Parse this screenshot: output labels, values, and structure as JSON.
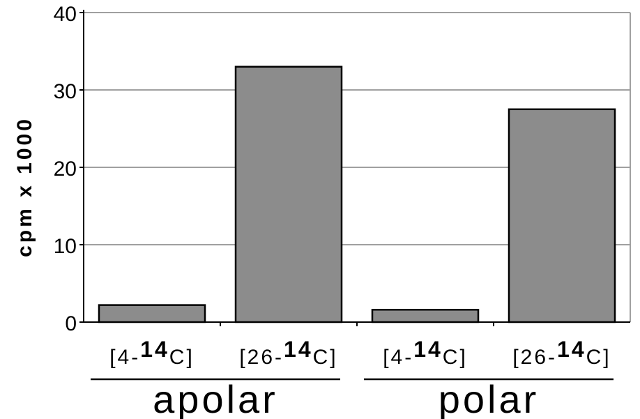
{
  "chart_data": {
    "type": "bar",
    "title": "",
    "xlabel": "",
    "ylabel": "cpm x 1000",
    "ylim": [
      0,
      40
    ],
    "yticks": [
      0,
      10,
      20,
      30,
      40
    ],
    "grid": true,
    "categories": [
      {
        "group": "apolar",
        "label_prefix": "[4-",
        "label_sup": "14",
        "label_suffix": "C]",
        "value": 2.2
      },
      {
        "group": "apolar",
        "label_prefix": "[26-",
        "label_sup": "14",
        "label_suffix": "C]",
        "value": 33
      },
      {
        "group": "polar",
        "label_prefix": "[4-",
        "label_sup": "14",
        "label_suffix": "C]",
        "value": 1.6
      },
      {
        "group": "polar",
        "label_prefix": "[26-",
        "label_sup": "14",
        "label_suffix": "C]",
        "value": 27.5
      }
    ],
    "groups": [
      "apolar",
      "polar"
    ],
    "bar_color": "#8c8c8c",
    "grid_color": "#a0a0a0"
  }
}
